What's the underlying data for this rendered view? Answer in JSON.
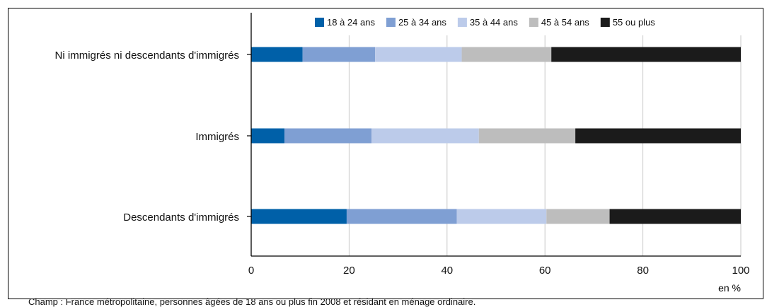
{
  "chart_data": {
    "type": "bar",
    "orientation": "horizontal",
    "stacked": true,
    "categories": [
      "Ni immigrés ni descendants d'immigrés",
      "Immigrés",
      "Descendants d'immigrés"
    ],
    "series": [
      {
        "name": "18 à 24 ans",
        "color": "#0060a8",
        "values": [
          10.5,
          6.8,
          19.5
        ]
      },
      {
        "name": "25 à 34 ans",
        "color": "#7f9fd3",
        "values": [
          14.8,
          17.8,
          22.5
        ]
      },
      {
        "name": "35 à 44 ans",
        "color": "#bccbea",
        "values": [
          17.7,
          21.9,
          18.3
        ]
      },
      {
        "name": "45 à 54 ans",
        "color": "#bdbdbd",
        "values": [
          18.3,
          19.7,
          12.9
        ]
      },
      {
        "name": "55 ou plus",
        "color": "#1b1b1b",
        "values": [
          38.7,
          33.8,
          26.8
        ]
      }
    ],
    "xlim": [
      0,
      100
    ],
    "xticks": [
      0,
      20,
      40,
      60,
      80,
      100
    ],
    "xunit": "en %",
    "legend_position": "top",
    "grid": "vertical"
  },
  "footnote": "Champ : France métropolitaine, personnes âgées de 18 ans ou plus fin 2008 et résidant en ménage ordinaire."
}
